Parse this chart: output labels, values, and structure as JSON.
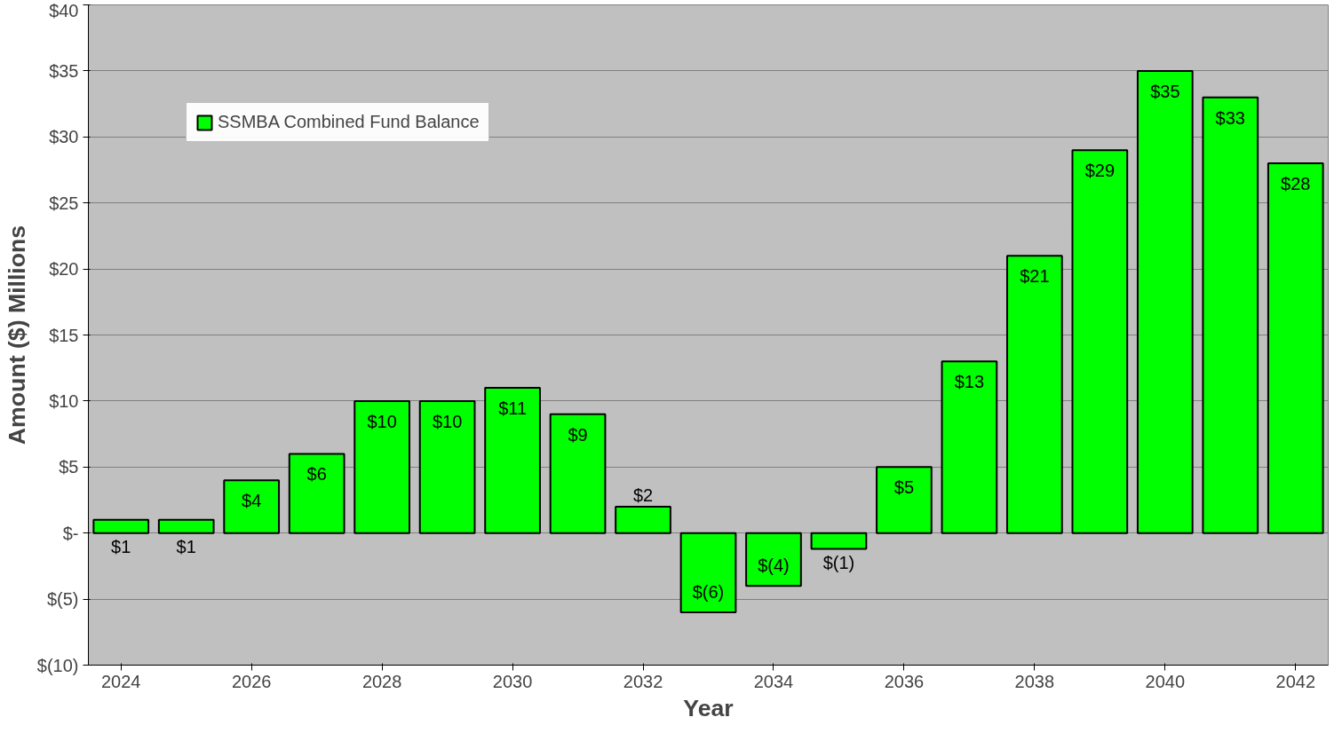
{
  "chart_data": {
    "type": "bar",
    "xlabel": "Year",
    "ylabel": "Amount ($) Millions",
    "x": [
      2024,
      2025,
      2026,
      2027,
      2028,
      2029,
      2030,
      2031,
      2032,
      2033,
      2034,
      2035,
      2036,
      2037,
      2038,
      2039,
      2040,
      2041,
      2042
    ],
    "xlim": [
      2023.5,
      2042.5
    ],
    "xticks": [
      2024,
      2026,
      2028,
      2030,
      2032,
      2034,
      2036,
      2038,
      2040,
      2042
    ],
    "ylim": [
      -10,
      40
    ],
    "yticks": [
      {
        "value": -10,
        "label": "$(10)"
      },
      {
        "value": -5,
        "label": "$(5)"
      },
      {
        "value": 0,
        "label": "$-"
      },
      {
        "value": 5,
        "label": "$5"
      },
      {
        "value": 10,
        "label": "$10"
      },
      {
        "value": 15,
        "label": "$15"
      },
      {
        "value": 20,
        "label": "$20"
      },
      {
        "value": 25,
        "label": "$25"
      },
      {
        "value": 30,
        "label": "$30"
      },
      {
        "value": 35,
        "label": "$35"
      },
      {
        "value": 40,
        "label": "$40"
      }
    ],
    "series": [
      {
        "name": "SSMBA Combined Fund Balance",
        "color": "#00ff00",
        "values": [
          1,
          1,
          4,
          6,
          10,
          10,
          11,
          9,
          2,
          -6,
          -4,
          -1.2,
          5,
          13,
          21,
          29,
          35,
          33,
          28
        ],
        "value_labels": [
          "$1",
          "$1",
          "$4",
          "$6",
          "$10",
          "$10",
          "$11",
          "$9",
          "$2",
          "$(6)",
          "$(4)",
          "$(1)",
          "$5",
          "$13",
          "$21",
          "$29",
          "$35",
          "$33",
          "$28"
        ]
      }
    ],
    "grid": "y",
    "legend": "top left"
  }
}
